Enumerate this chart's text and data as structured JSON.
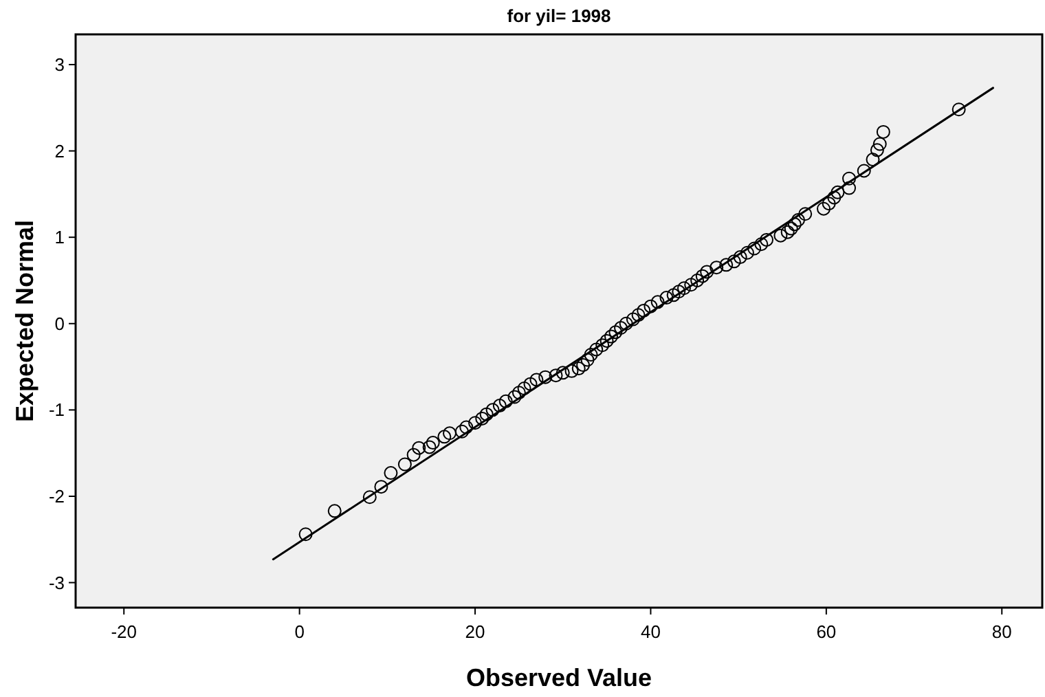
{
  "chart_data": {
    "type": "scatter",
    "title": "for yil= 1998",
    "xlabel": "Observed Value",
    "ylabel": "Expected Normal",
    "xlim": [
      -25.5,
      84.6
    ],
    "ylim": [
      -3.29,
      3.35
    ],
    "xticks": [
      -20,
      0,
      20,
      40,
      60,
      80
    ],
    "yticks": [
      -3,
      -2,
      -1,
      0,
      1,
      2,
      3
    ],
    "grid": false,
    "series": [
      {
        "marker": "circle",
        "color": "#000000",
        "x": [
          0.7,
          4,
          8,
          9.3,
          10.4,
          12,
          13,
          13.6,
          14.8,
          15.2,
          16.5,
          17.1,
          18.5,
          19,
          20,
          20.8,
          21.3,
          22,
          22.8,
          23.5,
          24.5,
          25,
          25.6,
          26.3,
          27,
          28,
          29.2,
          30,
          31,
          31.8,
          32.3,
          32.8,
          33.2,
          33.8,
          34.5,
          35,
          35.5,
          36,
          36.6,
          37.2,
          38,
          38.6,
          39.2,
          40,
          40.8,
          41.8,
          42.6,
          43.2,
          43.8,
          44.6,
          45.3,
          45.9,
          46.4,
          47.5,
          48.6,
          49.5,
          50.2,
          51,
          51.8,
          52.6,
          53.2,
          54.8,
          55.6,
          56,
          56.4,
          56.8,
          57.6,
          59.7,
          60.3,
          60.9,
          61.3,
          62.6,
          62.6,
          64.3,
          65.3,
          65.8,
          66.1,
          66.5,
          75.1
        ],
        "values": [
          -2.44,
          -2.17,
          -2.01,
          -1.89,
          -1.73,
          -1.63,
          -1.52,
          -1.44,
          -1.43,
          -1.38,
          -1.31,
          -1.27,
          -1.25,
          -1.2,
          -1.15,
          -1.1,
          -1.05,
          -1,
          -0.95,
          -0.9,
          -0.85,
          -0.8,
          -0.75,
          -0.7,
          -0.65,
          -0.62,
          -0.6,
          -0.57,
          -0.55,
          -0.52,
          -0.48,
          -0.42,
          -0.36,
          -0.3,
          -0.25,
          -0.2,
          -0.15,
          -0.1,
          -0.05,
          0,
          0.05,
          0.1,
          0.15,
          0.2,
          0.25,
          0.3,
          0.33,
          0.37,
          0.41,
          0.45,
          0.5,
          0.55,
          0.6,
          0.65,
          0.68,
          0.72,
          0.77,
          0.82,
          0.87,
          0.92,
          0.97,
          1.02,
          1.06,
          1.1,
          1.15,
          1.2,
          1.27,
          1.33,
          1.39,
          1.46,
          1.52,
          1.68,
          1.57,
          1.77,
          1.9,
          2.01,
          2.08,
          2.22,
          2.48
        ]
      },
      {
        "type": "line",
        "marker": "none",
        "line_style": "solid",
        "color": "#000000",
        "x": [
          -3,
          79
        ],
        "values": [
          -2.73,
          2.73
        ]
      }
    ]
  }
}
